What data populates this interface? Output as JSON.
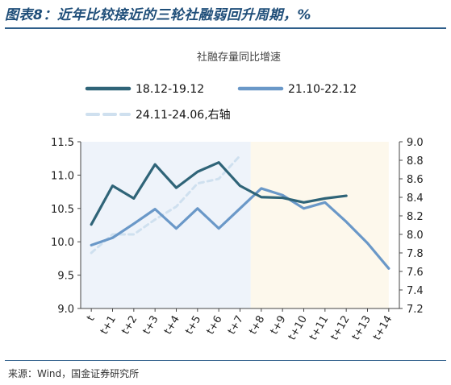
{
  "header": {
    "title": "图表8：近年比较接近的三轮社融弱回升周期，%"
  },
  "footer": {
    "source": "来源：Wind，国金证券研究所"
  },
  "chart_data": {
    "type": "line",
    "title": "社融存量同比增速",
    "categories": [
      "t",
      "t+1",
      "t+2",
      "t+3",
      "t+4",
      "t+5",
      "t+6",
      "t+7",
      "t+8",
      "t+9",
      "t+10",
      "t+11",
      "t+12",
      "t+13",
      "t+14"
    ],
    "ylim": [
      9.0,
      11.5
    ],
    "yticks": [
      "9.0",
      "9.5",
      "10.0",
      "10.5",
      "11.0",
      "11.5"
    ],
    "y2lim": [
      7.2,
      9.0
    ],
    "y2ticks": [
      "7.2",
      "7.4",
      "7.6",
      "7.8",
      "8.0",
      "8.2",
      "8.4",
      "8.6",
      "8.8",
      "9.0"
    ],
    "shaded_regions": [
      {
        "from": 0,
        "to": 8,
        "color": "#eef3fa"
      },
      {
        "from": 8,
        "to": 14.5,
        "color": "#fdf8ec"
      }
    ],
    "series": [
      {
        "name": "18.12-19.12",
        "axis": "left",
        "color": "#2f6478",
        "dash": "",
        "values": [
          10.26,
          10.84,
          10.65,
          11.16,
          10.81,
          11.05,
          11.19,
          10.84,
          10.67,
          10.66,
          10.59,
          10.65,
          10.69,
          null,
          null
        ]
      },
      {
        "name": "21.10-22.12",
        "axis": "left",
        "color": "#6a98c8",
        "dash": "",
        "values": [
          9.95,
          10.06,
          10.27,
          10.49,
          10.2,
          10.5,
          10.2,
          10.5,
          10.8,
          10.7,
          10.5,
          10.59,
          10.3,
          9.98,
          9.6
        ]
      },
      {
        "name": "24.11-24.06,右轴",
        "axis": "right",
        "color": "#cfe0ef",
        "dash": "6,5",
        "values": [
          7.8,
          8.0,
          8.0,
          8.16,
          8.3,
          8.55,
          8.6,
          8.85,
          null,
          null,
          null,
          null,
          null,
          null,
          null
        ]
      }
    ]
  }
}
